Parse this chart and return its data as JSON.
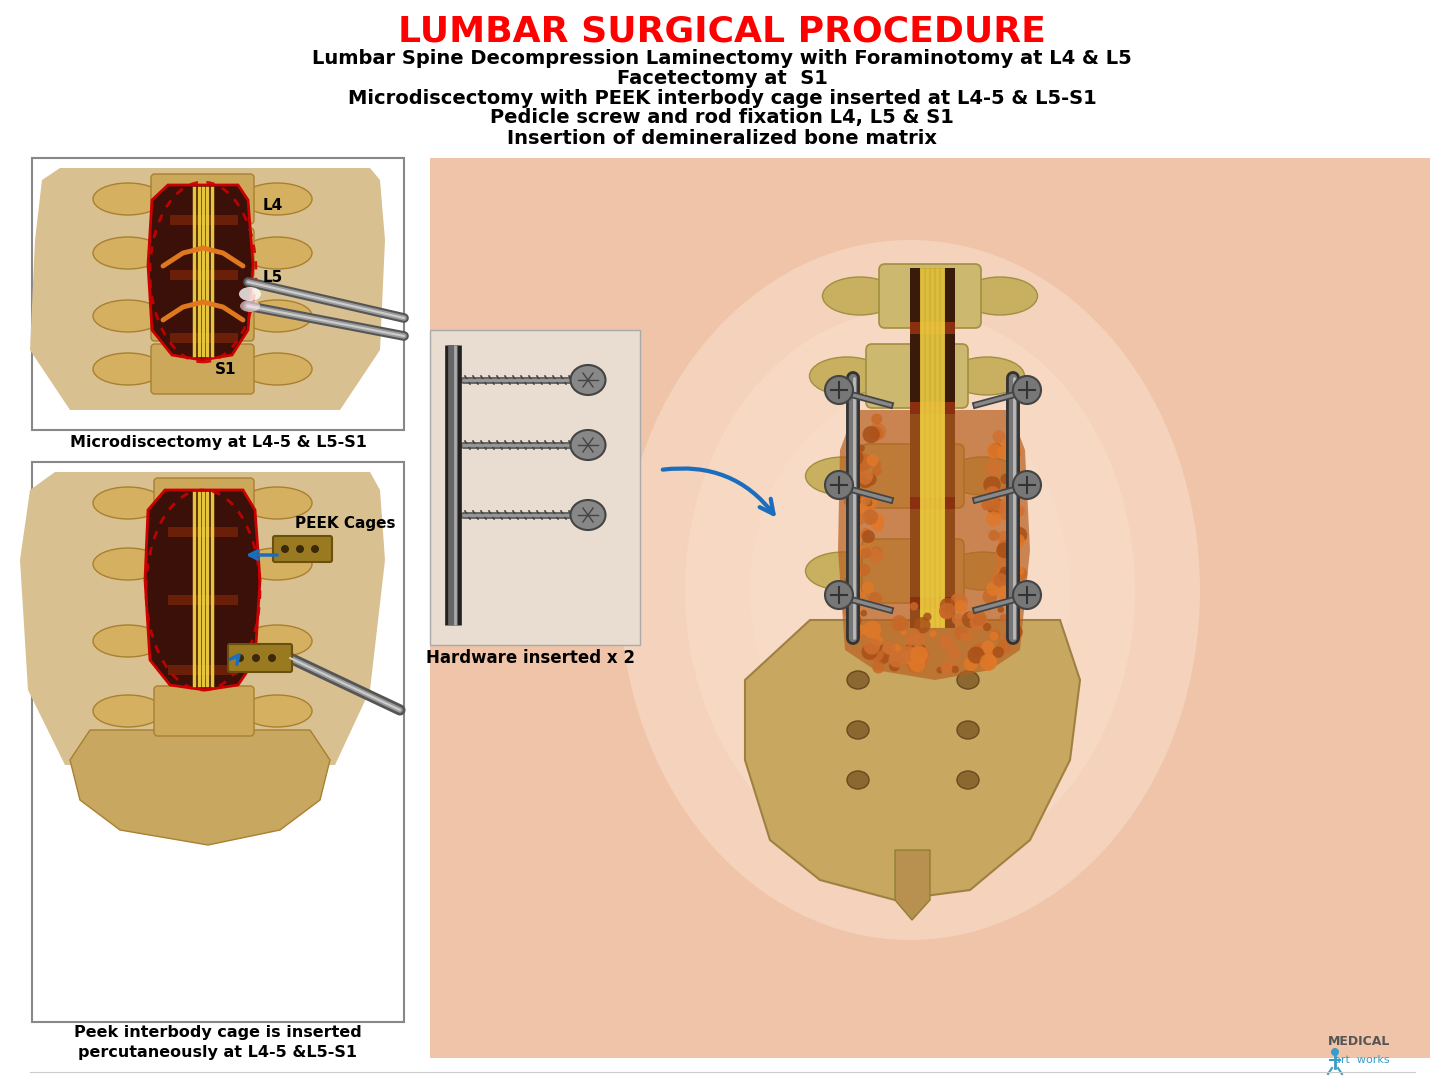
{
  "title": "LUMBAR SURGICAL PROCEDURE",
  "title_color": "#ff0000",
  "title_fontsize": 26,
  "subtitle_lines": [
    "Lumbar Spine Decompression Laminectomy with Foraminotomy at L4 & L5",
    "Facetectomy at  S1",
    "Microdiscectomy with PEEK interbody cage inserted at L4-5 & L5-S1",
    "Pedicle screw and rod fixation L4, L5 & S1",
    "Insertion of demineralized bone matrix"
  ],
  "subtitle_color": "#000000",
  "subtitle_fontsize": 14,
  "background_color": "#ffffff",
  "fig_width": 14.45,
  "fig_height": 10.84,
  "dpi": 100,
  "box1_caption": "Microdiscectomy at L4-5 & L5-S1",
  "box2_caption_line1": "Peek interbody cage is inserted",
  "box2_caption_line2": "percutaneously at L4-5 &L5-S1",
  "hardware_label": "Hardware inserted x 2",
  "watermark_line1": "MEDICAL",
  "watermark_line2": "art  works",
  "skin_color": "#f0c4a8",
  "skin_light": "#fce8d8",
  "bone_color": "#d4b87c",
  "bone_dark": "#b8924a",
  "dark_red": "#5a1a0a",
  "spinal_cord_color": "#e8c048",
  "nerve_color": "#e07820",
  "red_border": "#cc0000",
  "arrow_color": "#1a6ebd",
  "box_bg": "#ffffff",
  "hw_box_bg": "#e8ddd0",
  "metal_dark": "#444444",
  "metal_mid": "#777777",
  "metal_light": "#aaaaaa",
  "graft_color": "#c86828"
}
